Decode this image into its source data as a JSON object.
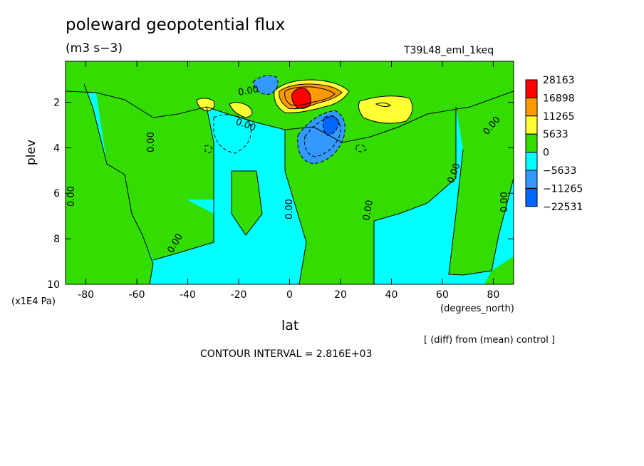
{
  "chart_data": {
    "type": "heatmap",
    "title": "poleward geopotential flux",
    "units": "(m3 s−3)",
    "run_label": "T39L48_eml_1keq",
    "xlabel": "lat",
    "x_units": "(degrees_north)",
    "ylabel": "plev",
    "y_units": "(x1E4 Pa)",
    "xlim": [
      -88,
      88
    ],
    "ylim": [
      10,
      0.2
    ],
    "x_ticks": [
      -80,
      -60,
      -40,
      -20,
      0,
      20,
      40,
      60,
      80
    ],
    "y_ticks": [
      2,
      4,
      6,
      8,
      10
    ],
    "note": "[ (diff) from (mean) control ]",
    "contour_interval_text": "CONTOUR INTERVAL = 2.816E+03",
    "contour_label": "0.00",
    "legend": {
      "labels": [
        "28163",
        "16898",
        "11265",
        "5633",
        "0",
        "−5633",
        "−11265",
        "−22531"
      ],
      "colors": [
        "#ff0000",
        "#ff9900",
        "#ffff33",
        "#33dd00",
        "#00ffff",
        "#3399ff",
        "#0066ff"
      ]
    },
    "features": [
      {
        "sign": "positive",
        "lat": [
          0,
          25
        ],
        "plev": [
          1,
          2.6
        ],
        "peak": 28163
      },
      {
        "sign": "negative",
        "lat": [
          5,
          28
        ],
        "plev": [
          2.2,
          5
        ],
        "min": -22531
      },
      {
        "sign": "positive",
        "lat": [
          28,
          48
        ],
        "plev": [
          1.7,
          2.6
        ],
        "peak": 5633
      },
      {
        "sign": "negative",
        "lat": [
          -16,
          0
        ],
        "plev": [
          0.4,
          1.3
        ],
        "min": -11265
      },
      {
        "sign": "positive",
        "lat": [
          -38,
          -27
        ],
        "plev": [
          1.5,
          2.3
        ],
        "peak": 5633
      },
      {
        "sign": "positive",
        "lat": [
          -23,
          -13
        ],
        "plev": [
          1.8,
          2.5
        ],
        "peak": 5633
      }
    ]
  }
}
